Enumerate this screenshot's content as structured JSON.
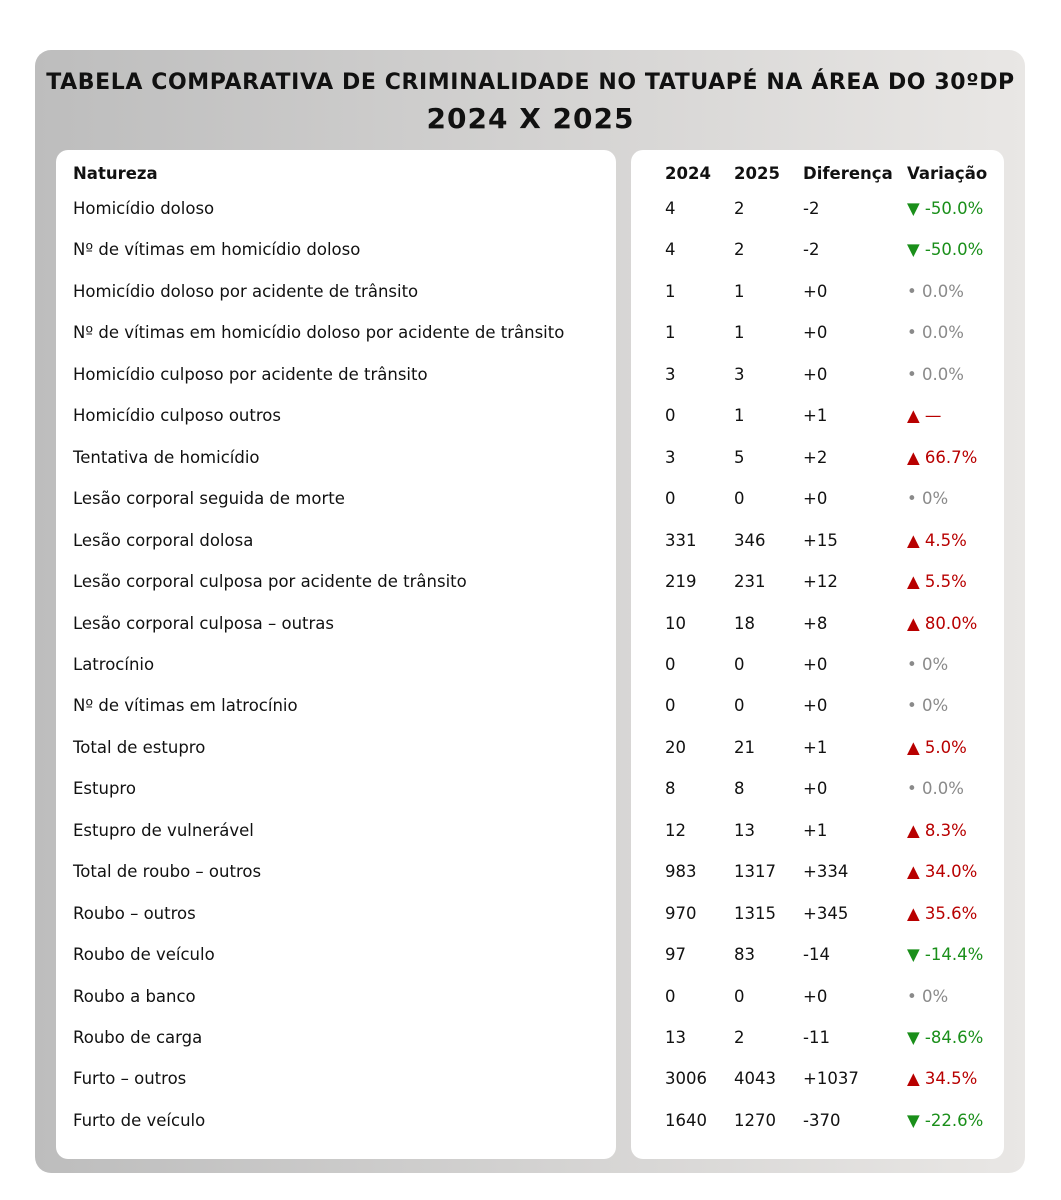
{
  "header": {
    "title": "TABELA COMPARATIVA DE CRIMINALIDADE NO TATUAPÉ NA ÁREA DO 30ºDP",
    "subtitle": "2024 X 2025"
  },
  "table": {
    "columns": [
      "Natureza",
      "2024",
      "2025",
      "Diferença",
      "Variação"
    ],
    "rows": [
      [
        "Homicídio doloso",
        4,
        2,
        "-2",
        "▼ -50.0%"
      ],
      [
        "Nº de vítimas em homicídio doloso",
        4,
        2,
        "-2",
        "▼ -50.0%"
      ],
      [
        "Homicídio doloso por acidente de trânsito",
        1,
        1,
        "+0",
        "• 0.0%"
      ],
      [
        "Nº de vítimas em homicídio doloso por acidente de trânsito",
        1,
        1,
        "+0",
        "• 0.0%"
      ],
      [
        "Homicídio culposo por acidente de trânsito",
        3,
        3,
        "+0",
        "• 0.0%"
      ],
      [
        "Homicídio culposo outros",
        0,
        1,
        "+1",
        "▲ —"
      ],
      [
        "Tentativa de homicídio",
        3,
        5,
        "+2",
        "▲ 66.7%"
      ],
      [
        "Lesão corporal seguida de morte",
        0,
        0,
        "+0",
        "• 0%"
      ],
      [
        "Lesão corporal dolosa",
        331,
        346,
        "+15",
        "▲ 4.5%"
      ],
      [
        "Lesão corporal culposa por acidente de trânsito",
        219,
        231,
        "+12",
        "▲ 5.5%"
      ],
      [
        "Lesão corporal culposa – outras",
        10,
        18,
        "+8",
        "▲ 80.0%"
      ],
      [
        "Latrocínio",
        0,
        0,
        "+0",
        "• 0%"
      ],
      [
        "Nº de vítimas em latrocínio",
        0,
        0,
        "+0",
        "• 0%"
      ],
      [
        "Total de estupro",
        20,
        21,
        "+1",
        "▲ 5.0%"
      ],
      [
        "Estupro",
        8,
        8,
        "+0",
        "• 0.0%"
      ],
      [
        "Estupro de vulnerável",
        12,
        13,
        "+1",
        "▲ 8.3%"
      ],
      [
        "Total de roubo – outros",
        983,
        1317,
        "+334",
        "▲ 34.0%"
      ],
      [
        "Roubo – outros",
        970,
        1315,
        "+345",
        "▲ 35.6%"
      ],
      [
        "Roubo de veículo",
        97,
        83,
        "-14",
        "▼ -14.4%"
      ],
      [
        "Roubo a banco",
        0,
        0,
        "+0",
        "• 0%"
      ],
      [
        "Roubo de carga",
        13,
        2,
        "-11",
        "▼ -84.6%"
      ],
      [
        "Furto – outros",
        3006,
        4043,
        "+1037",
        "▲ 34.5%"
      ],
      [
        "Furto de veículo",
        1640,
        1270,
        "-370",
        "▼ -22.6%"
      ]
    ]
  }
}
